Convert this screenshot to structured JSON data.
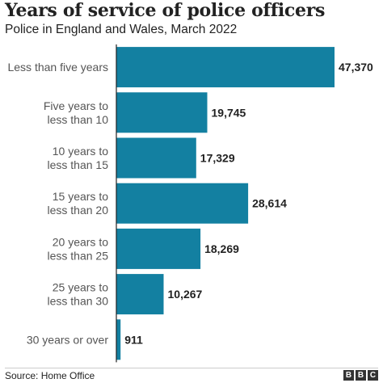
{
  "title": "Years of service of police officers",
  "subtitle": "Police in England and Wales, March 2022",
  "source": "Source: Home Office",
  "logo_letters": [
    "B",
    "B",
    "C"
  ],
  "colors": {
    "bar": "#1380A1",
    "baseline": "#222222"
  },
  "chart_data": {
    "type": "bar",
    "orientation": "horizontal",
    "title": "Years of service of police officers",
    "subtitle": "Police in England and Wales, March 2022",
    "categories": [
      [
        "Less than five years"
      ],
      [
        "Five years to",
        "less than 10"
      ],
      [
        "10 years to",
        "less than 15"
      ],
      [
        "15 years to",
        "less than 20"
      ],
      [
        "20 years to",
        "less than 25"
      ],
      [
        "25 years to",
        "less than 30"
      ],
      [
        "30 years or over"
      ]
    ],
    "values": [
      47370,
      19745,
      17329,
      28614,
      18269,
      10267,
      911
    ],
    "value_labels": [
      "47,370",
      "19,745",
      "17,329",
      "28,614",
      "18,269",
      "10,267",
      "911"
    ],
    "xlim": [
      0,
      47370
    ],
    "grid": false,
    "legend": "none"
  }
}
